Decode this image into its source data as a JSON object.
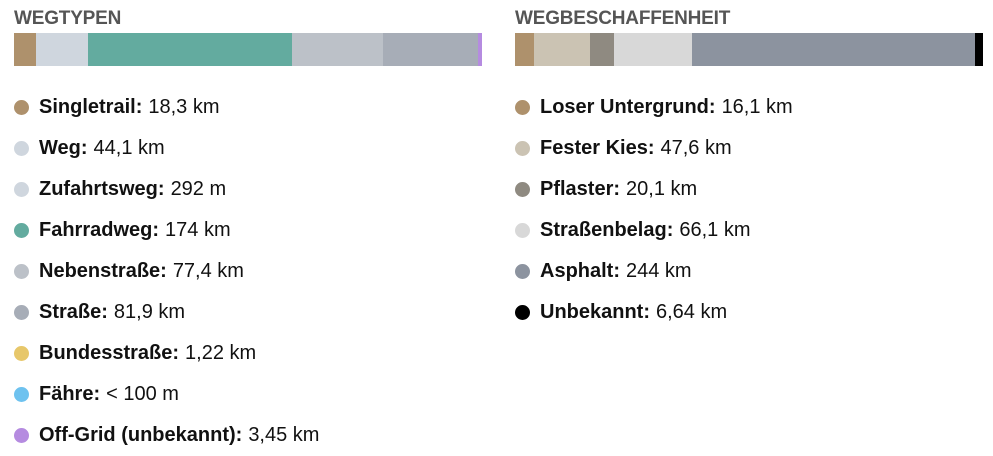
{
  "wegtypen": {
    "title": "WEGTYPEN",
    "bar": [
      {
        "name": "singletrail",
        "color": "#ae916c",
        "share": 0.0476
      },
      {
        "name": "weg",
        "color": "#cfd6de",
        "share": 0.1132
      },
      {
        "name": "fahrradweg",
        "color": "#63ab9f",
        "share": 0.4444
      },
      {
        "name": "nebenstrasse",
        "color": "#bcc1c8",
        "share": 0.1966
      },
      {
        "name": "strasse",
        "color": "#a7adb7",
        "share": 0.2073
      },
      {
        "name": "off-grid",
        "color": "#b58be0",
        "share": 0.009
      }
    ],
    "items": [
      {
        "label": "Singletrail:",
        "value": "18,3 km",
        "color": "#ae916c"
      },
      {
        "label": "Weg:",
        "value": "44,1 km",
        "color": "#cfd6de"
      },
      {
        "label": "Zufahrtsweg:",
        "value": "292 m",
        "color": "#cfd6de"
      },
      {
        "label": "Fahrradweg:",
        "value": "174 km",
        "color": "#63ab9f"
      },
      {
        "label": "Nebenstraße:",
        "value": "77,4 km",
        "color": "#bcc1c8"
      },
      {
        "label": "Straße:",
        "value": "81,9 km",
        "color": "#a7adb7"
      },
      {
        "label": "Bundesstraße:",
        "value": "1,22 km",
        "color": "#e7c76a"
      },
      {
        "label": "Fähre:",
        "value": "< 100 m",
        "color": "#6ec2ef"
      },
      {
        "label": "Off-Grid (unbekannt):",
        "value": "3,45 km",
        "color": "#b58be0"
      }
    ]
  },
  "wegbeschaffenheit": {
    "title": "WEGBESCHAFFENHEIT",
    "bar": [
      {
        "name": "loser-untergrund",
        "color": "#ae916c",
        "share": 0.0406
      },
      {
        "name": "fester-kies",
        "color": "#cbc3b3",
        "share": 0.1197
      },
      {
        "name": "pflaster",
        "color": "#8f8a81",
        "share": 0.0513
      },
      {
        "name": "strassenbelag",
        "color": "#d8d8d8",
        "share": 0.1667
      },
      {
        "name": "asphalt",
        "color": "#8c939f",
        "share": 0.6068
      },
      {
        "name": "unbekannt",
        "color": "#000000",
        "share": 0.0171
      }
    ],
    "items": [
      {
        "label": "Loser Untergrund:",
        "value": "16,1 km",
        "color": "#ae916c"
      },
      {
        "label": "Fester Kies:",
        "value": "47,6 km",
        "color": "#cbc3b3"
      },
      {
        "label": "Pflaster:",
        "value": "20,1 km",
        "color": "#8f8a81"
      },
      {
        "label": "Straßenbelag:",
        "value": "66,1 km",
        "color": "#d8d8d8"
      },
      {
        "label": "Asphalt:",
        "value": "244 km",
        "color": "#8c939f"
      },
      {
        "label": "Unbekannt:",
        "value": "6,64 km",
        "color": "#000000"
      }
    ]
  }
}
